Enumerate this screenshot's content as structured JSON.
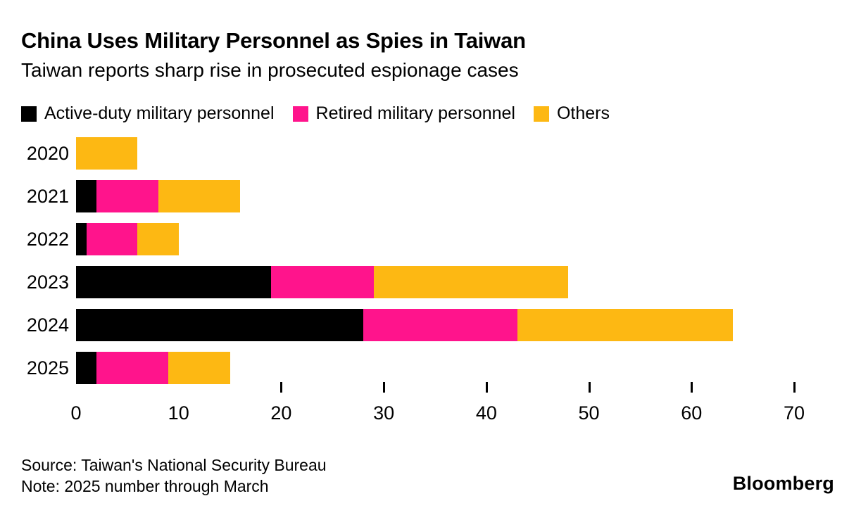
{
  "header": {
    "title": "China Uses Military Personnel as Spies in Taiwan",
    "subtitle": "Taiwan reports sharp rise in prosecuted espionage cases"
  },
  "chart_data": {
    "type": "bar",
    "orientation": "horizontal",
    "stacked": true,
    "title": "China Uses Military Personnel as Spies in Taiwan",
    "subtitle": "Taiwan reports sharp rise in prosecuted espionage cases",
    "categories": [
      "2020",
      "2021",
      "2022",
      "2023",
      "2024",
      "2025"
    ],
    "series": [
      {
        "name": "Active-duty military personnel",
        "color": "#000000",
        "values": [
          0,
          2,
          1,
          19,
          28,
          2
        ]
      },
      {
        "name": "Retired military personnel",
        "color": "#ff148c",
        "values": [
          0,
          6,
          5,
          10,
          15,
          7
        ]
      },
      {
        "name": "Others",
        "color": "#fdb813",
        "values": [
          6,
          8,
          4,
          19,
          21,
          6
        ]
      }
    ],
    "totals": [
      6,
      16,
      10,
      48,
      64,
      15
    ],
    "xlim": [
      0,
      70
    ],
    "xticks": [
      0,
      10,
      20,
      30,
      40,
      50,
      60,
      70
    ],
    "tick_marks": [
      20,
      30,
      40,
      50,
      60,
      70
    ],
    "legend_position": "top",
    "grid": false
  },
  "footer": {
    "source": "Source: Taiwan's National Security Bureau",
    "note": "Note: 2025 number through March",
    "brand": "Bloomberg"
  }
}
